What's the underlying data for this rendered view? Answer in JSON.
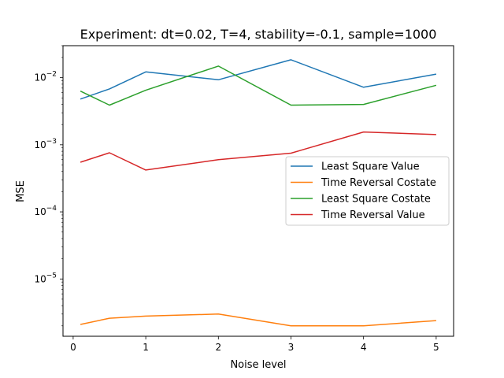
{
  "chart_data": {
    "type": "line",
    "title": "Experiment: dt=0.02, T=4, stability=-0.1, sample=1000",
    "xlabel": "Noise level",
    "ylabel": "MSE",
    "yscale": "log",
    "xlim": [
      -0.14,
      5.24
    ],
    "ylim": [
      1.4e-06,
      0.03
    ],
    "grid": false,
    "legend_position": "center-right",
    "x": [
      0.1,
      0.5,
      1,
      2,
      3,
      4,
      5
    ],
    "xticks": [
      0,
      1,
      2,
      3,
      4,
      5
    ],
    "xtick_labels": [
      "0",
      "1",
      "2",
      "3",
      "4",
      "5"
    ],
    "yticks": [
      1e-05,
      0.0001,
      0.001,
      0.01
    ],
    "ytick_labels": [
      "10",
      "10",
      "10",
      "10"
    ],
    "ytick_exponents": [
      "−5",
      "−4",
      "−3",
      "−2"
    ],
    "series": [
      {
        "name": "Least Square Value",
        "color": "#1f77b4",
        "values": [
          0.0048,
          0.0068,
          0.0122,
          0.0093,
          0.0185,
          0.0072,
          0.0113
        ]
      },
      {
        "name": "Time Reversal Costate",
        "color": "#ff7f0e",
        "values": [
          2.1e-06,
          2.6e-06,
          2.8e-06,
          3e-06,
          2e-06,
          2e-06,
          2.4e-06
        ]
      },
      {
        "name": "Least Square Costate",
        "color": "#2ca02c",
        "values": [
          0.0063,
          0.0039,
          0.0065,
          0.0149,
          0.0039,
          0.004,
          0.0077
        ]
      },
      {
        "name": "Time Reversal Value",
        "color": "#d62728",
        "values": [
          0.00055,
          0.00076,
          0.00042,
          0.0006,
          0.00075,
          0.00155,
          0.00142
        ]
      }
    ]
  }
}
